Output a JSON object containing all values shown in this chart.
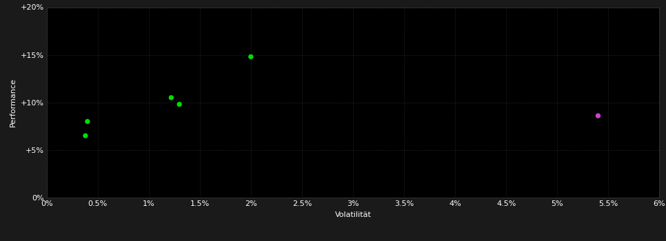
{
  "background_color": "#1a1a1a",
  "plot_bg_color": "#000000",
  "grid_color": "#3a3a3a",
  "text_color": "#ffffff",
  "xlabel": "Volatilität",
  "ylabel": "Performance",
  "xlim": [
    0,
    0.06
  ],
  "ylim": [
    0,
    0.2
  ],
  "xtick_values": [
    0.0,
    0.005,
    0.01,
    0.015,
    0.02,
    0.025,
    0.03,
    0.035,
    0.04,
    0.045,
    0.05,
    0.055,
    0.06
  ],
  "ytick_values": [
    0.0,
    0.05,
    0.1,
    0.15,
    0.2
  ],
  "green_points": [
    [
      0.004,
      0.08
    ],
    [
      0.0038,
      0.065
    ],
    [
      0.0122,
      0.105
    ],
    [
      0.013,
      0.098
    ],
    [
      0.02,
      0.148
    ]
  ],
  "magenta_points": [
    [
      0.054,
      0.086
    ]
  ],
  "green_color": "#00dd00",
  "magenta_color": "#cc44cc",
  "marker_size": 28,
  "grid_linewidth": 0.5,
  "grid_linestyle": ":",
  "xlabel_fontsize": 8,
  "ylabel_fontsize": 8,
  "tick_fontsize": 8
}
